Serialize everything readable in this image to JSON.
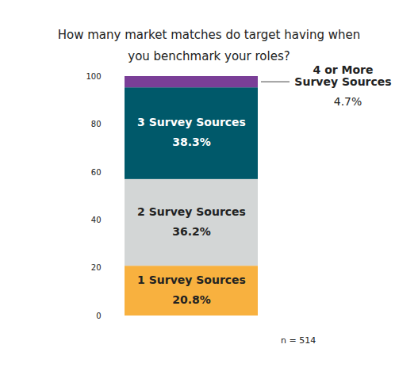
{
  "chart_data": {
    "type": "bar",
    "title": "How many market matches do target having when\nyou benchmark your roles?",
    "categories": [
      null
    ],
    "series": [
      {
        "name": "1 Survey Sources",
        "color": "#f8b13f",
        "values": [
          20.8
        ],
        "value_labels": [
          "20.8%"
        ]
      },
      {
        "name": "2 Survey Sources",
        "color": "#d3d6d6",
        "values": [
          36.2
        ],
        "value_labels": [
          "36.2%"
        ]
      },
      {
        "name": "3 Survey Sources",
        "color": "#00596a",
        "values": [
          38.3
        ],
        "value_labels": [
          "38.3%"
        ]
      },
      {
        "name": "4 or More\nSurvey Sources",
        "color": "#7a3e97",
        "values": [
          4.7
        ],
        "value_labels": [
          "4.7%"
        ]
      }
    ],
    "ylim": [
      0,
      100
    ],
    "yticks": [
      0,
      20,
      40,
      60,
      80,
      100
    ],
    "stacked": true,
    "data_labels": true,
    "grid": false,
    "annotations": [
      "n = 514"
    ]
  }
}
